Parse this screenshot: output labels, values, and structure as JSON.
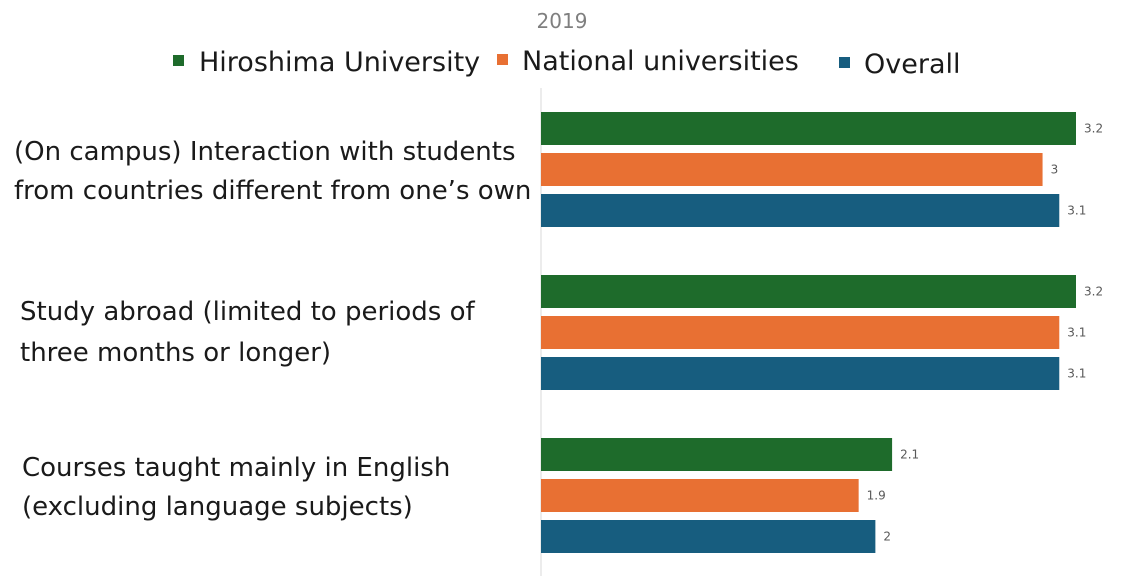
{
  "chart_data": {
    "type": "bar",
    "orientation": "horizontal",
    "title": "2019",
    "categories": [
      [
        "(On campus) Interaction with students",
        "from countries different from one’s own"
      ],
      [
        "Study abroad (limited to periods of",
        "three months or longer)"
      ],
      [
        "Courses taught mainly in English",
        "(excluding language subjects)"
      ]
    ],
    "series": [
      {
        "name": "Hiroshima University",
        "color": "#1e6b2b",
        "values": [
          3.2,
          3.2,
          2.1
        ]
      },
      {
        "name": "National universities",
        "color": "#e87033",
        "values": [
          3,
          3.1,
          1.9
        ]
      },
      {
        "name": "Overall",
        "color": "#175d7f",
        "values": [
          3.1,
          3.1,
          2
        ]
      }
    ],
    "xlim": [
      0,
      3.2
    ],
    "grid": false,
    "legend_position": "top",
    "data_labels": true
  }
}
